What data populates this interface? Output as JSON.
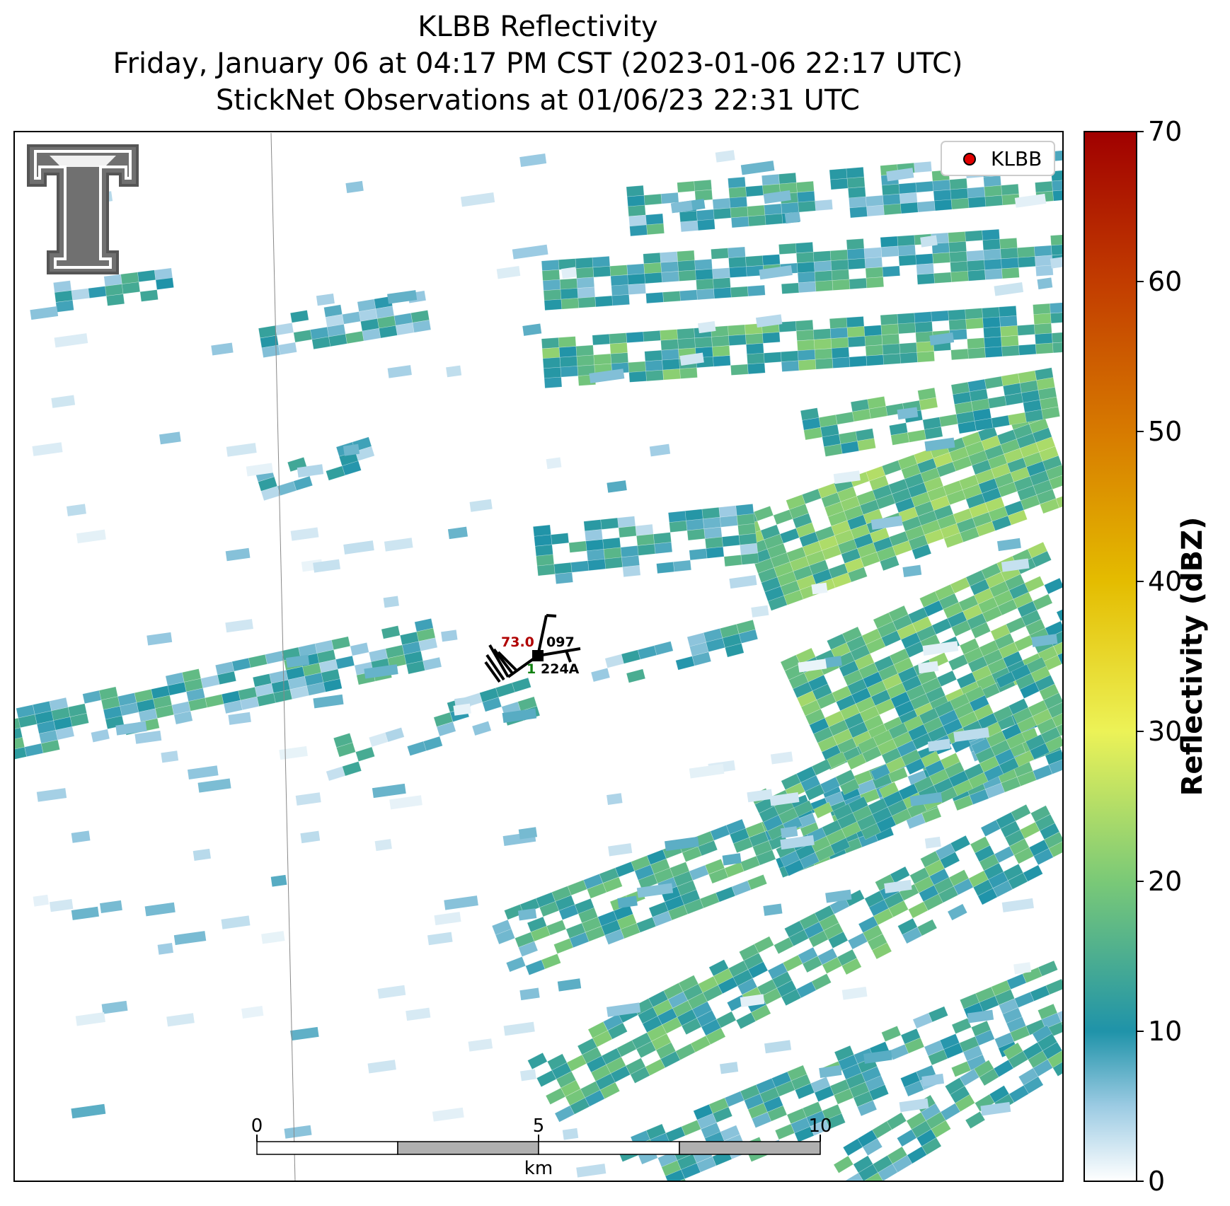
{
  "title": {
    "line1": "KLBB Reflectivity",
    "line2": "Friday, January 06 at 04:17 PM CST (2023-01-06 22:17 UTC)",
    "line3": "StickNet Observations at 01/06/23 22:31 UTC"
  },
  "legend": {
    "label": "KLBB",
    "marker_color": "#e00000"
  },
  "colorbar": {
    "label": "Reflectivity (dBZ)",
    "min": 0,
    "max": 70,
    "ticks": [
      "0",
      "10",
      "20",
      "30",
      "40",
      "50",
      "60",
      "70"
    ],
    "stops": [
      {
        "v": 0,
        "color": "#ffffff"
      },
      {
        "v": 5,
        "color": "#9ccbe3"
      },
      {
        "v": 10,
        "color": "#1f93a9"
      },
      {
        "v": 20,
        "color": "#7ac977"
      },
      {
        "v": 30,
        "color": "#ecf257"
      },
      {
        "v": 40,
        "color": "#e4bc00"
      },
      {
        "v": 50,
        "color": "#d77a00"
      },
      {
        "v": 60,
        "color": "#c23c00"
      },
      {
        "v": 70,
        "color": "#a00000"
      }
    ]
  },
  "scale_bar": {
    "unit": "km",
    "labels": [
      "0",
      "5",
      "10"
    ]
  },
  "station": {
    "temperature": "73.0",
    "pressure": "097",
    "dewpoint": "1",
    "id": "224A",
    "temp_color": "#b00000",
    "dew_color": "#108010"
  },
  "logo": {
    "name": "texas-tech-double-t-logo",
    "color": "#606060"
  }
}
